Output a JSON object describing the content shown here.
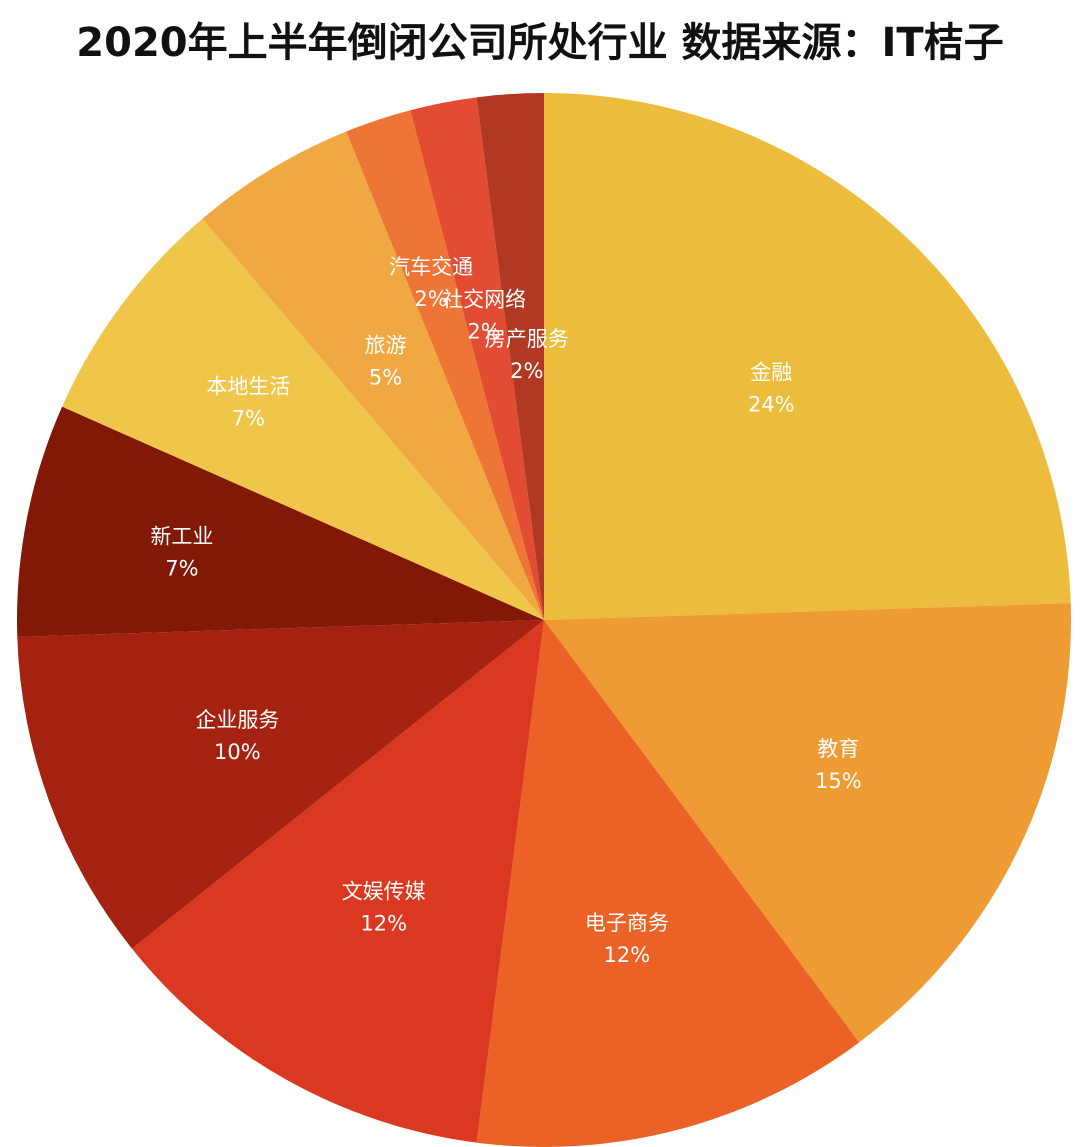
{
  "chart_data": {
    "type": "pie",
    "title": "2020年上半年倒闭公司所处行业 数据来源：IT桔子",
    "slices": [
      {
        "label": "金融",
        "value": 24,
        "display": "24%",
        "color": "#ECBD3D"
      },
      {
        "label": "教育",
        "value": 15,
        "display": "15%",
        "color": "#EF9B33"
      },
      {
        "label": "电子商务",
        "value": 12,
        "display": "12%",
        "color": "#EB6126"
      },
      {
        "label": "文娱传媒",
        "value": 12,
        "display": "12%",
        "color": "#DA3820"
      },
      {
        "label": "企业服务",
        "value": 10,
        "display": "10%",
        "color": "#A52210"
      },
      {
        "label": "新工业",
        "value": 7,
        "display": "7%",
        "color": "#821806"
      },
      {
        "label": "本地生活",
        "value": 7,
        "display": "7%",
        "color": "#EFC54A"
      },
      {
        "label": "旅游",
        "value": 5,
        "display": "5%",
        "color": "#F0A843"
      },
      {
        "label": "汽车交通",
        "value": 2,
        "display": "2%",
        "color": "#EE7535"
      },
      {
        "label": "社交网络",
        "value": 2,
        "display": "2%",
        "color": "#E24C32"
      },
      {
        "label": "房产服务",
        "value": 2,
        "display": "2%",
        "color": "#B13822"
      }
    ],
    "legend": "none",
    "start_angle": "12 o'clock",
    "direction": "clockwise"
  }
}
